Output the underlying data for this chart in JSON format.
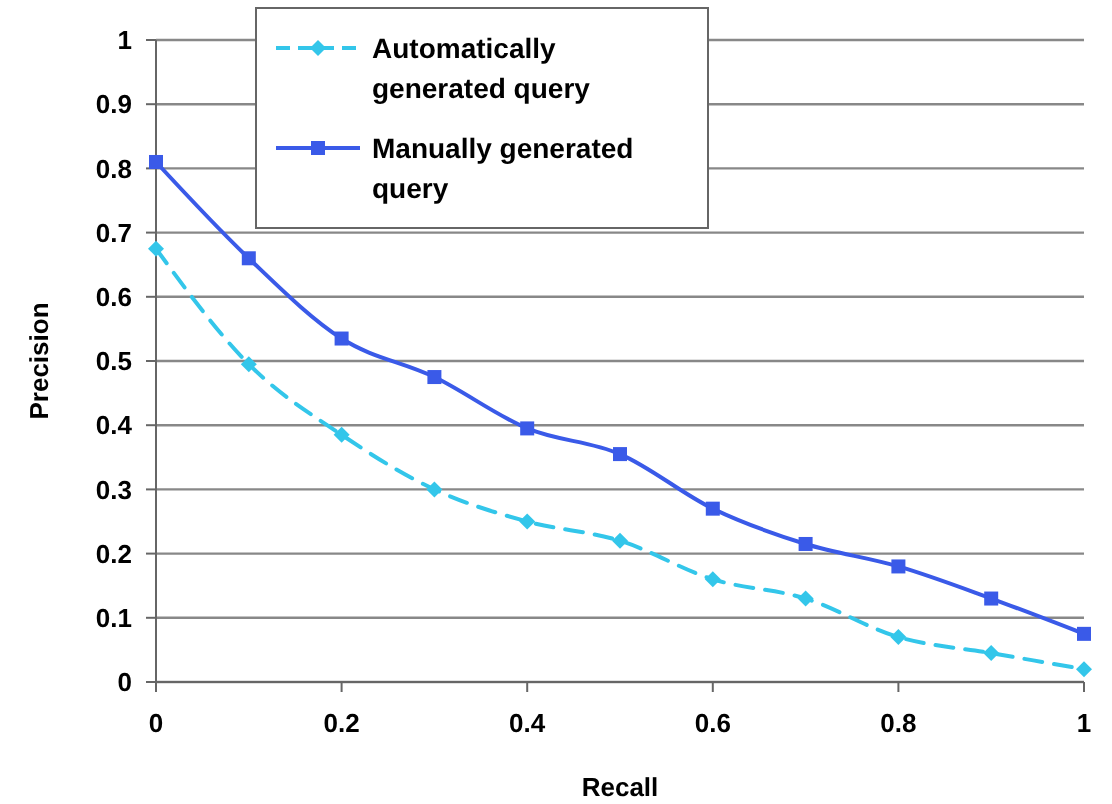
{
  "chart_data": {
    "type": "line",
    "xlabel": "Recall",
    "ylabel": "Precision",
    "x": [
      0,
      0.1,
      0.2,
      0.3,
      0.4,
      0.5,
      0.6,
      0.7,
      0.8,
      0.9,
      1
    ],
    "series": [
      {
        "name": "Automatically generated query",
        "color": "#33c6ea",
        "marker": "diamond",
        "line_style": "dashed",
        "values": [
          0.675,
          0.495,
          0.385,
          0.3,
          0.25,
          0.22,
          0.16,
          0.13,
          0.07,
          0.045,
          0.02
        ]
      },
      {
        "name": "Manually generated query",
        "color": "#3a5ae8",
        "marker": "square",
        "line_style": "solid",
        "values": [
          0.81,
          0.66,
          0.535,
          0.475,
          0.395,
          0.355,
          0.27,
          0.215,
          0.18,
          0.13,
          0.075
        ]
      }
    ],
    "xlim": [
      0,
      1
    ],
    "xticks": [
      0,
      0.2,
      0.4,
      0.6,
      0.8,
      1
    ],
    "ylim": [
      0,
      1
    ],
    "yticks": [
      0,
      0.1,
      0.2,
      0.3,
      0.4,
      0.5,
      0.6,
      0.7,
      0.8,
      0.9,
      1
    ],
    "grid": "y",
    "legend": "top"
  }
}
